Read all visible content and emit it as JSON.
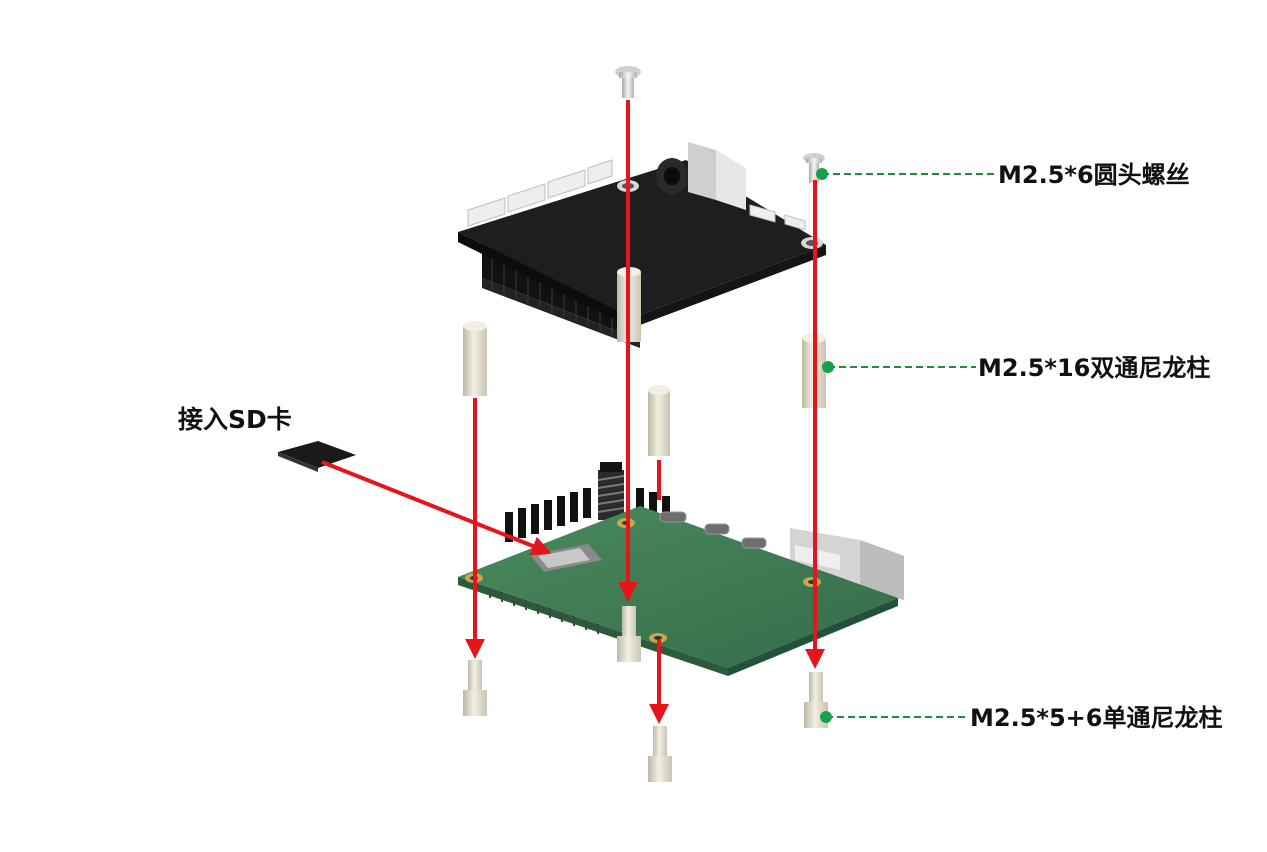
{
  "labels": {
    "screw": "M2.5*6圆头螺丝",
    "double_standoff": "M2.5*16双通尼龙柱",
    "single_standoff": "M2.5*5+6单通尼龙柱",
    "sd_card": "接入SD卡"
  },
  "colors": {
    "assembly_arrow": "#e8141b",
    "leader_line": "#1a8f3c",
    "leader_dot": "#15a14a",
    "hat_board": "#1c1c1c",
    "main_board": "#3f7f55",
    "standoff": "#e7e2d0"
  }
}
